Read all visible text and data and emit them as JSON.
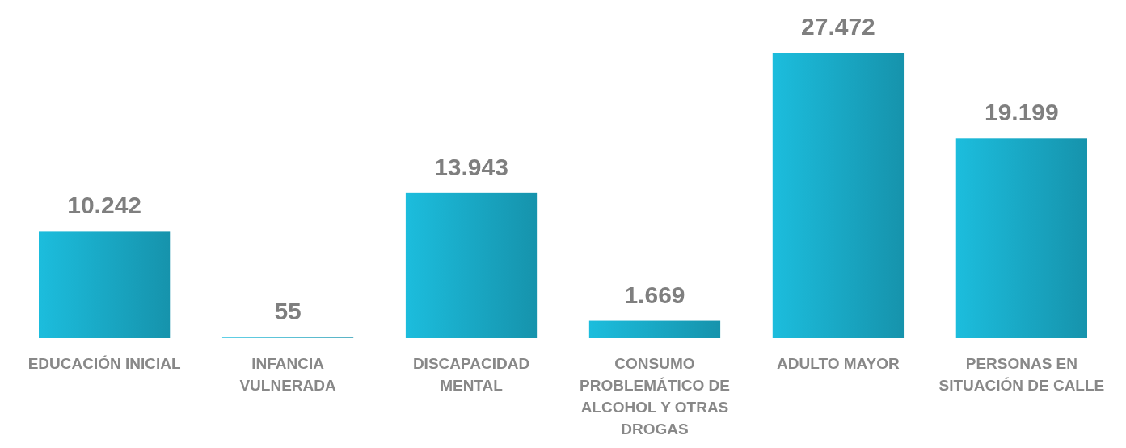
{
  "chart_data": {
    "type": "bar",
    "categories": [
      "EDUCACIÓN INICIAL",
      "INFANCIA VULNERADA",
      "DISCAPACIDAD MENTAL",
      "CONSUMO PROBLEMÁTICO DE ALCOHOL Y OTRAS DROGAS",
      "ADULTO MAYOR",
      "PERSONAS EN SITUACIÓN DE CALLE"
    ],
    "values": [
      10242,
      55,
      13943,
      1669,
      27472,
      19199
    ],
    "value_labels": [
      "10.242",
      "55",
      "13.943",
      "1.669",
      "27.472",
      "19.199"
    ],
    "color": "#19a7c3"
  }
}
